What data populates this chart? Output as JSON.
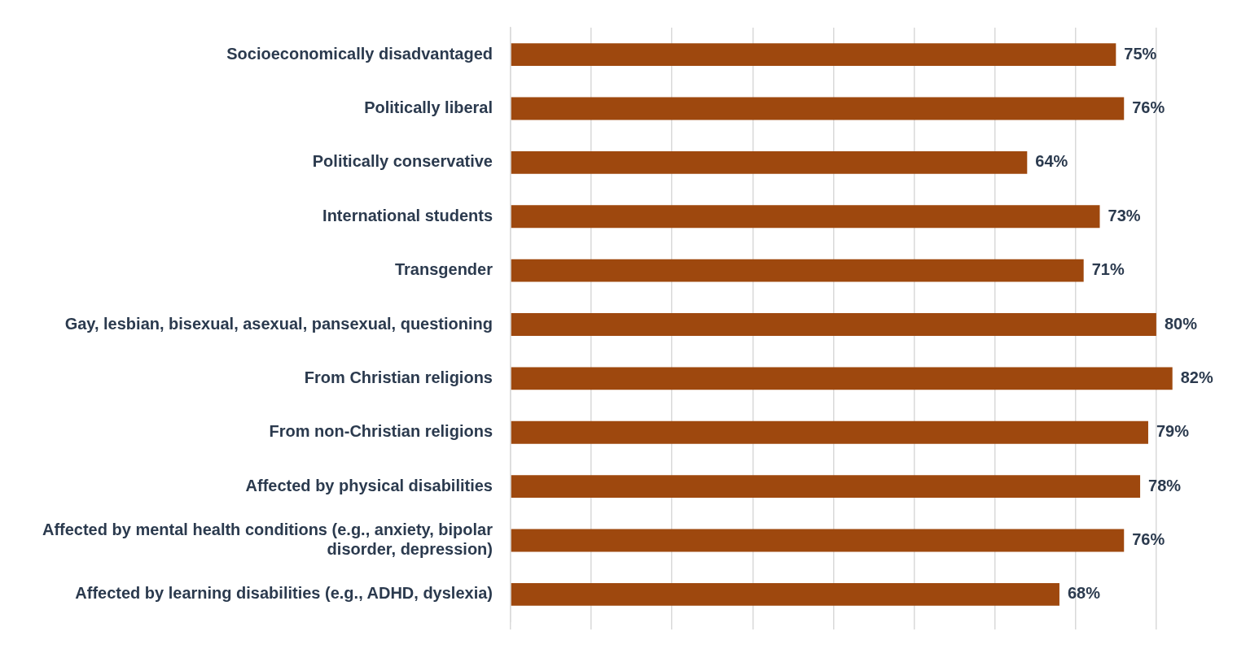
{
  "chart_data": {
    "type": "bar",
    "orientation": "horizontal",
    "categories": [
      "Socioeconomically disadvantaged",
      "Politically liberal",
      "Politically conservative",
      "International students",
      "Transgender",
      "Gay, lesbian, bisexual, asexual, pansexual, questioning",
      "From Christian religions",
      "From non-Christian religions",
      "Affected by physical disabilities",
      "Affected by mental health conditions (e.g., anxiety, bipolar disorder, depression)",
      "Affected by learning disabilities (e.g., ADHD, dyslexia)"
    ],
    "values": [
      75,
      76,
      64,
      73,
      71,
      80,
      82,
      79,
      78,
      76,
      68
    ],
    "color": "#9e480e",
    "value_labels": [
      "75%",
      "76%",
      "64%",
      "73%",
      "71%",
      "80%",
      "82%",
      "79%",
      "78%",
      "76%",
      "68%"
    ],
    "xticks": [
      {
        "value": 0,
        "label": null
      },
      {
        "value": 10,
        "label": null
      },
      {
        "value": 20,
        "label": null
      },
      {
        "value": 30,
        "label": null
      },
      {
        "value": 40,
        "label": null
      },
      {
        "value": 50,
        "label": null
      },
      {
        "value": 60,
        "label": null
      },
      {
        "value": 70,
        "label": null
      },
      {
        "value": 80,
        "label": null
      }
    ],
    "grid": "x",
    "tick_labels": "y",
    "legend": false
  }
}
